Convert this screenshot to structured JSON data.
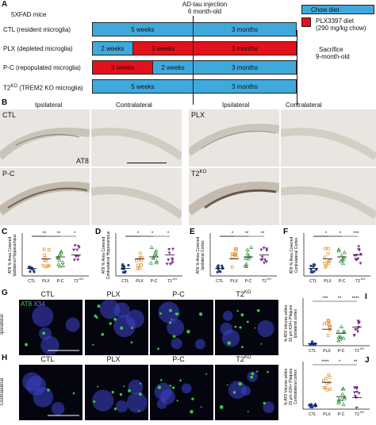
{
  "panelA": {
    "letter": "A",
    "mice": "5XFAD mice",
    "injection": "AD-tau injection",
    "age6": "6 month-old",
    "legend_chow": "Chow diet",
    "legend_plx1": "PLX3397 diet",
    "legend_plx2": "(290 mg/kg chow)",
    "sacrifice1": "Sacrifice",
    "sacrifice2": "9-month-old",
    "rows": [
      {
        "label": "CTL (resident microglia)",
        "seg1": "5 weeks",
        "seg2": "3 months"
      },
      {
        "label": "PLX (depleted microglia)",
        "seg1": "2 weeks",
        "seg2": "3 weeks",
        "seg3": "3 months"
      },
      {
        "label": "P-C (repopulated microglia)",
        "seg1": "3 weeks",
        "seg2": "2 weeks",
        "seg3": "3 months"
      },
      {
        "label": "T2KO (TREM2 KO microglia)",
        "seg1": "5 weeks",
        "seg2": "3 months"
      }
    ],
    "row4_prefix": "T2",
    "row4_sup": "KO",
    "row4_suffix": " (TREM2 KO microglia)",
    "colors": {
      "chow": "#3fa9dc",
      "plx": "#e3111b"
    }
  },
  "panelB": {
    "letter": "B",
    "ipsi": "Ipsilateral",
    "contra": "Contralateral",
    "ctl": "CTL",
    "plx": "PLX",
    "pc": "P-C",
    "t2": "T2",
    "t2sup": "KO",
    "at8": "AT8"
  },
  "graphs": [
    {
      "letter": "C",
      "ylabel": "AT8 % Area Covered\nIpsilateral Hippocampus",
      "sig": [
        "**",
        "**",
        "*"
      ]
    },
    {
      "letter": "D",
      "ylabel": "AT8 % Area Covered\nContralateral Hippocampus",
      "sig": [
        "*",
        "*",
        "*"
      ]
    },
    {
      "letter": "E",
      "ylabel": "AT8 % Area Covered\nIpsilateral Cortex",
      "sig": [
        "*",
        "**",
        "**"
      ]
    },
    {
      "letter": "F",
      "ylabel": "AT8 % Area Covered\nContralateral Cortex",
      "sig": [
        "*",
        "*",
        "***"
      ]
    }
  ],
  "xcats": [
    "CTL",
    "PLX",
    "P-C",
    "T2"
  ],
  "xsup": "KO",
  "panelG": {
    "letter": "G",
    "legend_at8": "AT8",
    "legend_x34": "X34",
    "side": "Ipsilateral",
    "cols": [
      "CTL",
      "PLX",
      "P-C",
      "T2"
    ],
    "colsup": "KO"
  },
  "panelH": {
    "letter": "H",
    "side": "Contralateral",
    "cols": [
      "CTL",
      "PLX",
      "P-C",
      "T2"
    ],
    "colsup": "KO"
  },
  "panelI": {
    "letter": "I",
    "ylabel1": "% AT8 Volume within",
    "ylabel2": "15 μm X34+ Plaques",
    "ylabel3": "Ipsilateral cortex",
    "sig": [
      "***",
      "**",
      "****"
    ]
  },
  "panelJ": {
    "letter": "J",
    "ylabel1": "% AT8 Volume within",
    "ylabel2": "15 μm X34+ Plaques",
    "ylabel3": "Contralateral cortex",
    "sig": [
      "****",
      "*",
      "**"
    ]
  },
  "point_colors": {
    "CTL": "#1f3f8f",
    "PLX": "#e08a2a",
    "PC": "#2f8f3a",
    "T2KO": "#7a2f8f"
  }
}
